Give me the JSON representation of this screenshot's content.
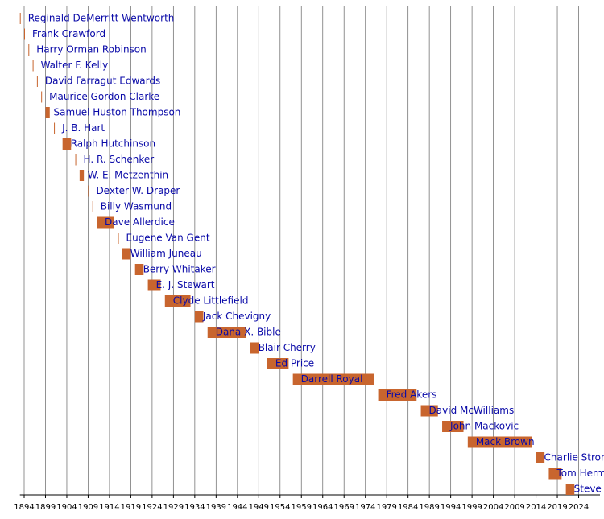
{
  "chart_data": {
    "type": "timeline",
    "categories": [
      "Reginald DeMerritt Wentworth",
      "Frank Crawford",
      "Harry Orman Robinson",
      "Walter F. Kelly",
      "David Farragut Edwards",
      "Maurice Gordon Clarke",
      "Samuel Huston Thompson",
      "J. B. Hart",
      "Ralph Hutchinson",
      "H. R. Schenker",
      "W. E. Metzenthin",
      "Dexter W. Draper",
      "Billy Wasmund",
      "Dave Allerdice",
      "Eugene Van Gent",
      "William Juneau",
      "Berry Whitaker",
      "E. J. Stewart",
      "Clyde Littlefield",
      "Jack Chevigny",
      "Dana X. Bible",
      "Blair Cherry",
      "Ed Price",
      "Darrell Royal",
      "Fred Akers",
      "David McWilliams",
      "John Mackovic",
      "Mack Brown",
      "Charlie Stron",
      "Tom Herm",
      "Steve"
    ],
    "start": [
      1893,
      1894,
      1895,
      1896,
      1897,
      1898,
      1899,
      1901,
      1903,
      1906,
      1907,
      1909,
      1910,
      1911,
      1916,
      1917,
      1920,
      1923,
      1927,
      1934,
      1937,
      1947,
      1951,
      1957,
      1977,
      1987,
      1992,
      1998,
      2014,
      2017,
      2021
    ],
    "end": [
      1893,
      1894,
      1895,
      1896,
      1897,
      1898,
      1900,
      1901,
      1905,
      1906,
      1908,
      1909,
      1910,
      1915,
      1916,
      1919,
      1922,
      1926,
      1933,
      1936,
      1946,
      1949,
      1956,
      1976,
      1986,
      1991,
      1997,
      2013,
      2016,
      2020,
      2023
    ],
    "color": "#c8652e",
    "label_color": "#0a0aa8",
    "xlim": [
      1893,
      2029
    ],
    "xticks": [
      1894,
      1899,
      1904,
      1909,
      1914,
      1919,
      1924,
      1929,
      1934,
      1939,
      1944,
      1949,
      1954,
      1959,
      1964,
      1969,
      1974,
      1979,
      1984,
      1989,
      1994,
      1999,
      2004,
      2009,
      2014,
      2019,
      2024
    ],
    "grid": true
  }
}
